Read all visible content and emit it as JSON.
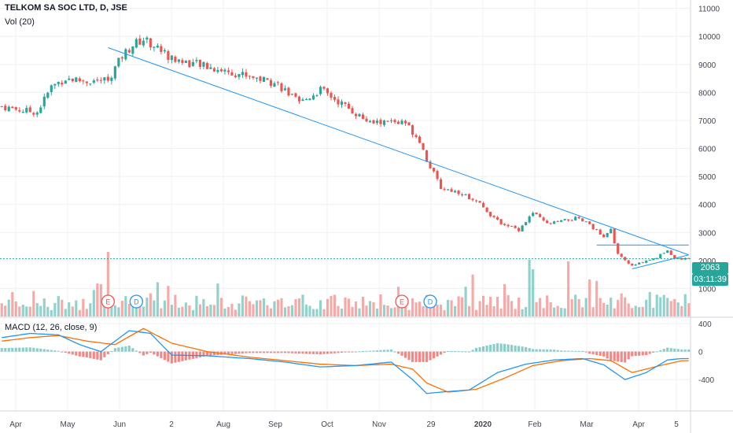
{
  "header": {
    "symbol_title": "TELKOM SA SOC LTD, D, JSE",
    "volume_label": "Vol (20)",
    "macd_label": "MACD (12, 26, close, 9)"
  },
  "price_tags": {
    "last": "2063",
    "countdown": "03:11:39"
  },
  "colors": {
    "up": "#26a69a",
    "down": "#ef5350",
    "macd": "#2196f3",
    "signal": "#ff6d00",
    "trendline": "#2196f3",
    "event": "#ef5350",
    "dividend": "#2196f3"
  },
  "chart_data": [
    {
      "type": "candlestick",
      "panel": "price",
      "y_ticks": [
        1000,
        2000,
        3000,
        4000,
        5000,
        6000,
        7000,
        8000,
        9000,
        10000,
        11000
      ],
      "ylim": [
        0,
        11300
      ],
      "x_tick_labels": [
        "Apr",
        "May",
        "Jun",
        "2",
        "Aug",
        "Sep",
        "Oct",
        "Nov",
        "29",
        "2020",
        "Feb",
        "Mar",
        "Apr",
        "5"
      ],
      "close_anchors": [
        [
          0,
          7500
        ],
        [
          6,
          7350
        ],
        [
          10,
          7300
        ],
        [
          14,
          8200
        ],
        [
          18,
          8500
        ],
        [
          24,
          8400
        ],
        [
          30,
          8450
        ],
        [
          34,
          9300
        ],
        [
          37,
          9700
        ],
        [
          40,
          9900
        ],
        [
          44,
          9600
        ],
        [
          48,
          9200
        ],
        [
          55,
          9000
        ],
        [
          62,
          8800
        ],
        [
          70,
          8600
        ],
        [
          78,
          8300
        ],
        [
          84,
          7600
        ],
        [
          90,
          8100
        ],
        [
          96,
          7600
        ],
        [
          104,
          6900
        ],
        [
          110,
          6950
        ],
        [
          114,
          6900
        ],
        [
          118,
          6300
        ],
        [
          120,
          5600
        ],
        [
          124,
          4600
        ],
        [
          130,
          4400
        ],
        [
          135,
          4000
        ],
        [
          140,
          3400
        ],
        [
          146,
          3100
        ],
        [
          150,
          3700
        ],
        [
          154,
          3300
        ],
        [
          158,
          3400
        ],
        [
          162,
          3500
        ],
        [
          166,
          3300
        ],
        [
          170,
          2800
        ],
        [
          172,
          3100
        ],
        [
          174,
          2200
        ],
        [
          178,
          1800
        ],
        [
          182,
          2000
        ],
        [
          185,
          2100
        ],
        [
          188,
          2400
        ],
        [
          190,
          2063
        ]
      ],
      "last_price": 2063,
      "trendlines": [
        {
          "from": [
            30,
            9600
          ],
          "to": [
            194,
            2200
          ]
        },
        {
          "from": [
            178,
            1700
          ],
          "to": [
            194,
            2200
          ]
        },
        {
          "from": [
            168,
            2550
          ],
          "to": [
            194,
            2550
          ]
        }
      ],
      "events": [
        {
          "index": 30,
          "label": "E"
        },
        {
          "index": 38,
          "label": "D"
        },
        {
          "index": 113,
          "label": "E"
        },
        {
          "index": 121,
          "label": "D"
        }
      ]
    },
    {
      "type": "bar",
      "panel": "volume",
      "series": [
        {
          "name": "Vol (20)"
        }
      ]
    },
    {
      "type": "line",
      "panel": "macd",
      "y_ticks": [
        400,
        0,
        -400
      ],
      "ylim": [
        -850,
        480
      ],
      "series": [
        {
          "name": "MACD",
          "anchors": [
            [
              0,
              200
            ],
            [
              8,
              260
            ],
            [
              16,
              240
            ],
            [
              22,
              100
            ],
            [
              28,
              0
            ],
            [
              36,
              300
            ],
            [
              42,
              260
            ],
            [
              48,
              -50
            ],
            [
              58,
              -60
            ],
            [
              70,
              -100
            ],
            [
              80,
              -150
            ],
            [
              90,
              -220
            ],
            [
              100,
              -200
            ],
            [
              110,
              -150
            ],
            [
              116,
              -400
            ],
            [
              120,
              -600
            ],
            [
              124,
              -580
            ],
            [
              132,
              -550
            ],
            [
              140,
              -300
            ],
            [
              148,
              -180
            ],
            [
              156,
              -120
            ],
            [
              164,
              -100
            ],
            [
              170,
              -190
            ],
            [
              176,
              -400
            ],
            [
              182,
              -300
            ],
            [
              188,
              -120
            ],
            [
              192,
              -100
            ]
          ]
        },
        {
          "name": "Signal",
          "anchors": [
            [
              0,
              150
            ],
            [
              8,
              200
            ],
            [
              16,
              230
            ],
            [
              24,
              150
            ],
            [
              32,
              100
            ],
            [
              40,
              330
            ],
            [
              48,
              120
            ],
            [
              58,
              0
            ],
            [
              70,
              -80
            ],
            [
              80,
              -130
            ],
            [
              90,
              -180
            ],
            [
              100,
              -200
            ],
            [
              110,
              -180
            ],
            [
              116,
              -250
            ],
            [
              120,
              -450
            ],
            [
              126,
              -580
            ],
            [
              134,
              -540
            ],
            [
              142,
              -380
            ],
            [
              150,
              -200
            ],
            [
              158,
              -130
            ],
            [
              166,
              -100
            ],
            [
              172,
              -130
            ],
            [
              178,
              -300
            ],
            [
              186,
              -200
            ],
            [
              192,
              -130
            ]
          ]
        }
      ]
    }
  ]
}
